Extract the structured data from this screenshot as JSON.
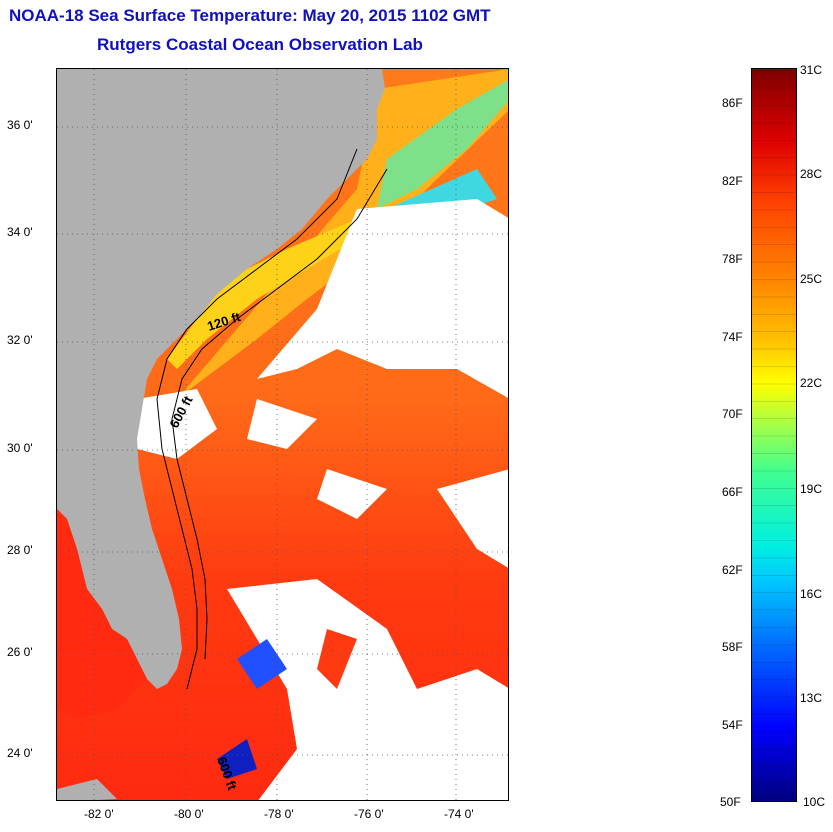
{
  "title": {
    "line1": "NOAA-18 Sea Surface Temperature:  May 20, 2015 1102 GMT",
    "line2": "Rutgers Coastal Ocean Observation Lab"
  },
  "map": {
    "lat_labels": [
      "36 0'",
      "34 0'",
      "32 0'",
      "30 0'",
      "28 0'",
      "26 0'",
      "24 0'"
    ],
    "lon_labels": [
      "-82 0'",
      "-80 0'",
      "-78 0'",
      "-76 0'",
      "-74 0'"
    ],
    "contour_labels": [
      "120 ft",
      "600 ft",
      "600 ft"
    ],
    "colors": {
      "land": "#b0b0b0",
      "cloud": "#ffffff",
      "warm": "#ff3a10",
      "mid": "#ff8c1a",
      "cool": "#ffd21a"
    }
  },
  "colorbar": {
    "fahrenheit": [
      "86F",
      "82F",
      "78F",
      "74F",
      "70F",
      "66F",
      "62F",
      "58F",
      "54F",
      "50F"
    ],
    "celsius": [
      "31C",
      "28C",
      "25C",
      "22C",
      "19C",
      "16C",
      "13C",
      "10C"
    ]
  }
}
